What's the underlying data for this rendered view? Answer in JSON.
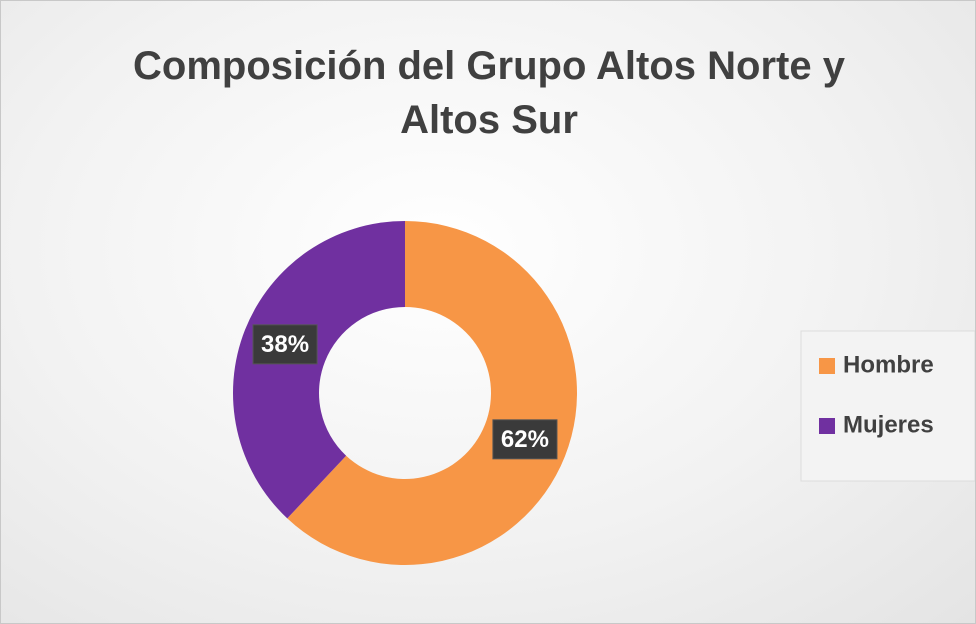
{
  "chart_data": {
    "type": "pie",
    "title": "Composición del Grupo Altos Norte y Altos Sur",
    "categories": [
      "Hombre",
      "Mujeres"
    ],
    "values": [
      62,
      38
    ],
    "value_labels": [
      "62%",
      "38%"
    ],
    "colors": [
      "#F79646",
      "#7030A0"
    ],
    "legend": "right"
  }
}
